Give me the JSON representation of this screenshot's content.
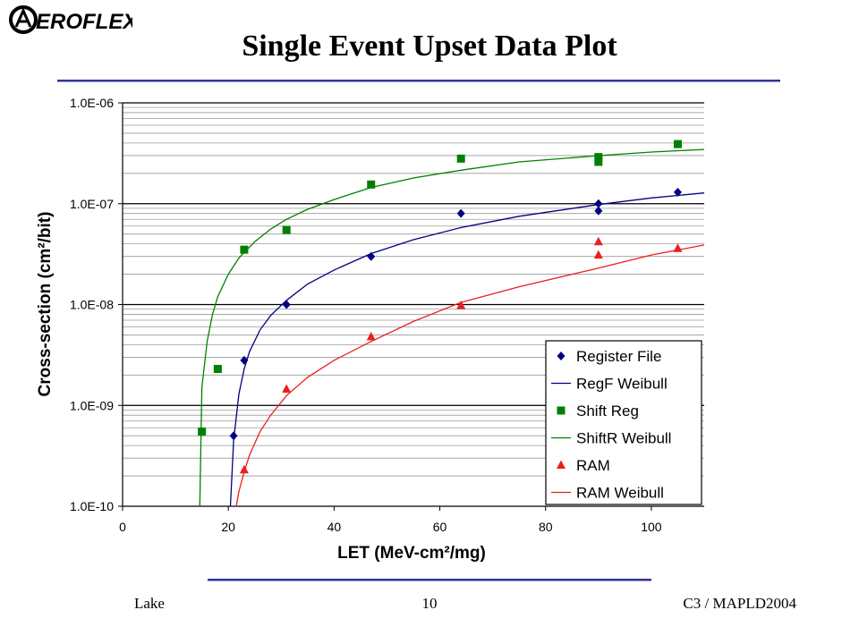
{
  "header": {
    "logo_text": "AEROFLEX",
    "title": "Single Event Upset Data Plot"
  },
  "footer": {
    "left": "Lake",
    "center": "10",
    "right": "C3 / MAPLD2004"
  },
  "colors": {
    "register": "#000080",
    "shift": "#008000",
    "ram": "#e8201e",
    "rule": "#33339a"
  },
  "chart_data": {
    "type": "scatter",
    "title": "",
    "xlabel": "LET (MeV-cm²/mg)",
    "ylabel": "Cross-section (cm²/bit)",
    "xlim": [
      0,
      110
    ],
    "ylim": [
      1e-10,
      1e-06
    ],
    "yscale": "log",
    "grid": true,
    "legend_position": "bottom-right",
    "x_ticks": [
      "0",
      "20",
      "40",
      "60",
      "80",
      "100"
    ],
    "y_ticks": [
      "1.0E-10",
      "1.0E-09",
      "1.0E-08",
      "1.0E-07",
      "1.0E-06"
    ],
    "series": [
      {
        "name": "Register File",
        "kind": "points",
        "marker": "diamond",
        "color": "#000080",
        "x": [
          21,
          23,
          31,
          47,
          64,
          90,
          90,
          105
        ],
        "y": [
          5e-10,
          2.8e-09,
          1e-08,
          3e-08,
          8e-08,
          8.5e-08,
          1e-07,
          1.3e-07
        ]
      },
      {
        "name": "RegF Weibull",
        "kind": "line",
        "color": "#000080",
        "x": [
          20.4,
          21,
          22,
          23,
          24,
          26,
          28,
          31,
          35,
          40,
          47,
          55,
          64,
          75,
          90,
          100,
          110
        ],
        "y": [
          1e-10,
          4.5e-10,
          1.3e-09,
          2.3e-09,
          3.4e-09,
          5.6e-09,
          7.8e-09,
          1.1e-08,
          1.6e-08,
          2.2e-08,
          3.2e-08,
          4.4e-08,
          5.8e-08,
          7.5e-08,
          9.8e-08,
          1.14e-07,
          1.28e-07
        ]
      },
      {
        "name": "Shift Reg",
        "kind": "points",
        "marker": "square",
        "color": "#008000",
        "x": [
          15,
          18,
          23,
          31,
          47,
          64,
          90,
          90,
          105
        ],
        "y": [
          5.5e-10,
          2.3e-09,
          3.5e-08,
          5.5e-08,
          1.55e-07,
          2.8e-07,
          2.6e-07,
          2.9e-07,
          3.9e-07
        ]
      },
      {
        "name": "ShiftR Weibull",
        "kind": "line",
        "color": "#008000",
        "x": [
          14.6,
          15,
          16,
          17,
          18,
          20,
          22,
          25,
          28,
          31,
          35,
          40,
          47,
          55,
          64,
          75,
          90,
          100,
          110
        ],
        "y": [
          1e-10,
          1.5e-09,
          4.3e-09,
          8e-09,
          1.2e-08,
          2e-08,
          2.9e-08,
          4.2e-08,
          5.6e-08,
          7e-08,
          8.8e-08,
          1.1e-07,
          1.45e-07,
          1.8e-07,
          2.15e-07,
          2.6e-07,
          3e-07,
          3.25e-07,
          3.45e-07
        ]
      },
      {
        "name": "RAM",
        "kind": "points",
        "marker": "triangle",
        "color": "#e8201e",
        "x": [
          23,
          31,
          47,
          64,
          90,
          90,
          105
        ],
        "y": [
          2.3e-10,
          1.45e-09,
          4.8e-09,
          9.8e-09,
          3.1e-08,
          4.2e-08,
          3.6e-08
        ]
      },
      {
        "name": "RAM Weibull",
        "kind": "line",
        "color": "#e8201e",
        "x": [
          21.5,
          22,
          23,
          24,
          26,
          28,
          31,
          35,
          40,
          47,
          55,
          64,
          75,
          90,
          100,
          110
        ],
        "y": [
          1e-10,
          1.4e-10,
          2.2e-10,
          3.2e-10,
          5.5e-10,
          8e-10,
          1.25e-09,
          1.9e-09,
          2.8e-09,
          4.3e-09,
          6.8e-09,
          1.05e-08,
          1.5e-08,
          2.3e-08,
          3.1e-08,
          3.9e-08
        ]
      }
    ]
  }
}
